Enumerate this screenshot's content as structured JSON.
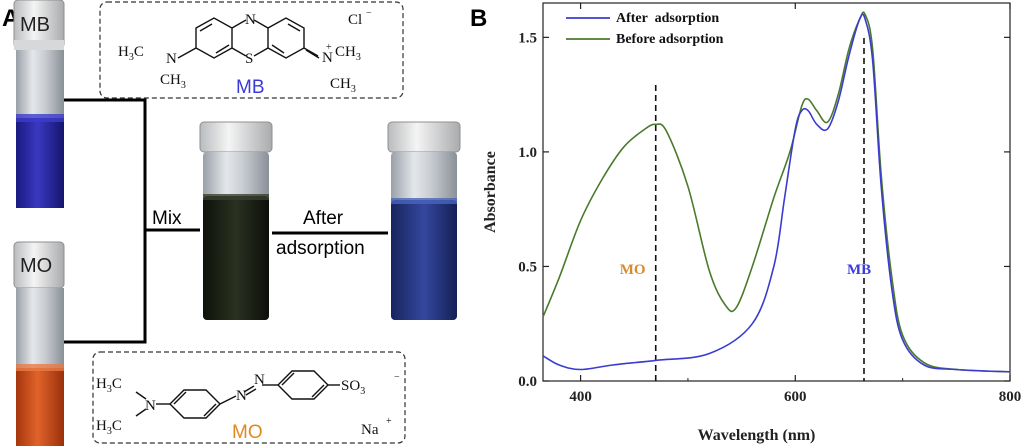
{
  "panel_a": {
    "letter": "A",
    "vial_mb_label": "MB",
    "vial_mo_label": "MO",
    "mix_label": "Mix",
    "after_label_line1": "After",
    "after_label_line2": "adsorption",
    "mb_structure": {
      "name": "MB",
      "name_color": "#3a3ad8",
      "counter_ion": "Cl",
      "n_top": "N",
      "s_ring": "S",
      "left_group": "H3C",
      "left_ch3": "CH3",
      "right_n": "N",
      "right_ch3_top": "CH3",
      "right_ch3_bot": "CH3"
    },
    "mo_structure": {
      "name": "MO",
      "name_color": "#e08a1e",
      "left_h3c_top": "H3C",
      "left_h3c_bot": "H3C",
      "n_left": "N",
      "azo_n1": "N",
      "azo_n2": "N",
      "sulfonate": "SO3",
      "counter_ion": "Na"
    },
    "colors": {
      "mb_solution": "#2a2ab0",
      "mo_solution": "#d4531a",
      "mix_solution": "#1f2418",
      "after_solution": "#283a8c"
    }
  },
  "panel_b": {
    "letter": "B",
    "peak_mo_label": "MO",
    "peak_mb_label": "MB",
    "peak_mo_color": "#d98a2b",
    "peak_mb_color": "#3a3ad8"
  },
  "chart_data": {
    "type": "line",
    "title": "",
    "xlabel": "Wavelength (nm)",
    "ylabel": "Absorbance",
    "xlim": [
      365,
      800
    ],
    "ylim": [
      0,
      1.65
    ],
    "xticks": [
      400,
      600,
      800
    ],
    "xtick_labels": [
      "400",
      "600",
      "800"
    ],
    "yticks": [
      0.0,
      0.5,
      1.0,
      1.5
    ],
    "ytick_labels": [
      "0.0",
      "0.5",
      "1.0",
      "1.5"
    ],
    "legend_position": "top-left",
    "reference_lines": [
      {
        "x": 470,
        "label": "MO"
      },
      {
        "x": 664,
        "label": "MB"
      }
    ],
    "series": [
      {
        "name": "After  adsorption",
        "color": "#3b3bd1",
        "x": [
          365,
          380,
          400,
          430,
          470,
          520,
          560,
          580,
          590,
          600,
          606,
          612,
          620,
          630,
          640,
          650,
          660,
          665,
          672,
          680,
          690,
          700,
          720,
          750,
          800
        ],
        "y": [
          0.11,
          0.07,
          0.05,
          0.07,
          0.09,
          0.12,
          0.25,
          0.5,
          0.8,
          1.1,
          1.18,
          1.18,
          1.12,
          1.1,
          1.22,
          1.42,
          1.58,
          1.58,
          1.4,
          0.85,
          0.4,
          0.18,
          0.07,
          0.05,
          0.04
        ]
      },
      {
        "name": "Before adsorption",
        "color": "#4a7a2c",
        "x": [
          365,
          380,
          400,
          420,
          440,
          460,
          470,
          480,
          500,
          520,
          535,
          545,
          560,
          580,
          595,
          606,
          612,
          620,
          630,
          640,
          650,
          660,
          665,
          672,
          680,
          690,
          700,
          720,
          750,
          800
        ],
        "y": [
          0.28,
          0.45,
          0.7,
          0.88,
          1.02,
          1.1,
          1.12,
          1.09,
          0.85,
          0.48,
          0.33,
          0.32,
          0.5,
          0.8,
          1.0,
          1.2,
          1.23,
          1.18,
          1.13,
          1.25,
          1.45,
          1.58,
          1.6,
          1.45,
          0.9,
          0.45,
          0.2,
          0.08,
          0.05,
          0.04
        ]
      }
    ]
  }
}
